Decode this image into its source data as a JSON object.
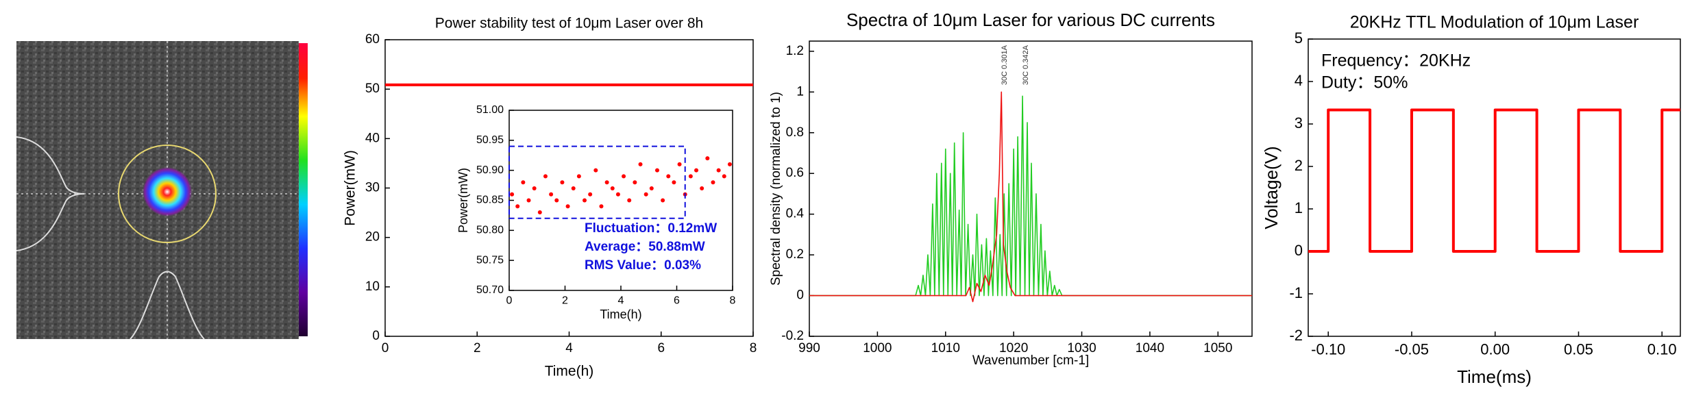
{
  "chart_data": [
    {
      "type": "line",
      "title": "Power stability test of 10μm Laser over 8h",
      "xlabel": "Time(h)",
      "ylabel": "Power(mW)",
      "xlim": [
        0,
        8
      ],
      "ylim": [
        0,
        60
      ],
      "xticks": [
        0,
        2,
        4,
        6,
        8
      ],
      "yticks": [
        0,
        10,
        20,
        30,
        40,
        50,
        60
      ],
      "series": [
        {
          "color": "#ff0000",
          "x": [
            0,
            8
          ],
          "values": [
            50.88,
            50.88
          ]
        }
      ],
      "inset": {
        "type": "scatter",
        "xlabel": "Time(h)",
        "ylabel": "Power(mW)",
        "color": "#ff0000",
        "xlim": [
          0,
          8
        ],
        "ylim": [
          50.7,
          51.0
        ],
        "xticks": [
          0,
          2,
          4,
          6,
          8
        ],
        "yticks": [
          {
            "value": 50.7,
            "label": "50.70"
          },
          {
            "value": 50.75,
            "label": "50.75"
          },
          {
            "value": 50.8,
            "label": "50.80"
          },
          {
            "value": 50.85,
            "label": "50.85"
          },
          {
            "value": 50.9,
            "label": "50.90"
          },
          {
            "value": 50.95,
            "label": "50.95"
          },
          {
            "value": 51.0,
            "label": "51.00"
          }
        ],
        "x": [
          0.1,
          0.3,
          0.5,
          0.7,
          0.9,
          1.1,
          1.3,
          1.5,
          1.7,
          1.9,
          2.1,
          2.3,
          2.5,
          2.7,
          2.9,
          3.1,
          3.3,
          3.5,
          3.7,
          3.9,
          4.1,
          4.3,
          4.5,
          4.7,
          4.9,
          5.1,
          5.3,
          5.5,
          5.7,
          5.9,
          6.1,
          6.3,
          6.5,
          6.7,
          6.9,
          7.1,
          7.3,
          7.5,
          7.7,
          7.9
        ],
        "values": [
          50.86,
          50.84,
          50.88,
          50.85,
          50.87,
          50.83,
          50.89,
          50.86,
          50.85,
          50.88,
          50.84,
          50.87,
          50.89,
          50.85,
          50.86,
          50.9,
          50.84,
          50.88,
          50.87,
          50.86,
          50.89,
          50.85,
          50.88,
          50.91,
          50.86,
          50.87,
          50.9,
          50.85,
          50.89,
          50.88,
          50.91,
          50.86,
          50.89,
          50.9,
          50.87,
          50.92,
          50.88,
          50.9,
          50.89,
          50.91
        ],
        "highlight": {
          "x": [
            0,
            6.3
          ],
          "y": [
            50.82,
            50.94
          ]
        },
        "annotations": [
          "Fluctuation：0.12mW",
          "Average：50.88mW",
          "RMS Value：0.03%"
        ]
      }
    },
    {
      "type": "line",
      "title": "Spectra of 10μm Laser for various DC currents",
      "xlabel": "Wavenumber [cm-1]",
      "ylabel": "Spectral density (normalized to 1)",
      "xlim": [
        990,
        1055
      ],
      "ylim": [
        -0.2,
        1.25
      ],
      "xticks": [
        990,
        1000,
        1010,
        1020,
        1030,
        1040,
        1050
      ],
      "yticks": [
        -0.2,
        0,
        0.2,
        0.4,
        0.6,
        0.8,
        1,
        1.2
      ],
      "series": [
        {
          "name": "30C 0.342A",
          "color": "#22cc22",
          "x": [
            990,
            1005.6,
            1006.0,
            1006.35,
            1006.7,
            1007.05,
            1007.4,
            1007.75,
            1008.1,
            1008.4,
            1008.7,
            1009.05,
            1009.4,
            1009.7,
            1010.0,
            1010.35,
            1010.7,
            1011.0,
            1011.3,
            1011.65,
            1012.0,
            1012.3,
            1012.6,
            1012.95,
            1013.3,
            1013.65,
            1014.0,
            1014.3,
            1014.6,
            1014.95,
            1015.3,
            1015.65,
            1016.0,
            1016.3,
            1016.6,
            1016.95,
            1017.3,
            1017.65,
            1018.0,
            1018.3,
            1018.6,
            1018.95,
            1019.3,
            1019.65,
            1020.0,
            1020.3,
            1020.6,
            1020.95,
            1021.3,
            1021.65,
            1022.0,
            1022.3,
            1022.6,
            1022.95,
            1023.3,
            1023.65,
            1024.0,
            1024.3,
            1024.6,
            1024.95,
            1025.3,
            1025.65,
            1026.0,
            1026.35,
            1026.7,
            1027.1,
            1055
          ],
          "values": [
            0,
            0,
            0.05,
            0,
            0.1,
            0,
            0.2,
            0,
            0.45,
            0,
            0.6,
            0,
            0.65,
            0,
            0.72,
            0,
            0.6,
            0,
            0.75,
            0,
            0.42,
            0,
            0.8,
            0,
            0.35,
            0,
            0.2,
            0,
            0.4,
            0,
            0.25,
            0,
            0.28,
            0,
            0.22,
            0,
            0.48,
            0,
            0.3,
            0,
            0.5,
            0,
            0.55,
            0,
            0.72,
            0,
            0.78,
            0,
            0.98,
            0,
            0.85,
            0,
            0.65,
            0,
            0.5,
            0,
            0.35,
            0,
            0.22,
            0,
            0.12,
            0,
            0.05,
            0,
            0.03,
            0,
            0
          ]
        },
        {
          "name": "30C 0.301A",
          "color": "#ee1111",
          "x": [
            990,
            1013,
            1013.5,
            1014,
            1014.6,
            1015.2,
            1015.8,
            1016.4,
            1016.9,
            1017.5,
            1017.9,
            1018.2,
            1018.5,
            1019,
            1019.5,
            1020.2,
            1055
          ],
          "values": [
            0,
            0,
            0.04,
            -0.03,
            0.06,
            0.02,
            0.1,
            0.05,
            0.15,
            0.3,
            0.6,
            1,
            0.25,
            0.12,
            0.04,
            0,
            0
          ]
        }
      ]
    },
    {
      "type": "line",
      "title": "20KHz TTL Modulation of 10μm Laser",
      "xlabel": "Time(ms)",
      "ylabel": "Voltage(V)",
      "xlim": [
        -0.112,
        0.111
      ],
      "ylim": [
        -2,
        5
      ],
      "xticks": [
        {
          "value": -0.1,
          "label": "-0.10"
        },
        {
          "value": -0.05,
          "label": "-0.05"
        },
        {
          "value": 0,
          "label": "0.00"
        },
        {
          "value": 0.05,
          "label": "0.05"
        },
        {
          "value": 0.1,
          "label": "0.10"
        }
      ],
      "yticks": [
        -2,
        -1,
        0,
        1,
        2,
        3,
        4,
        5
      ],
      "annotations": [
        "Frequency：20KHz",
        "Duty：50%"
      ],
      "series": [
        {
          "color": "#ff0000",
          "x": [
            -0.112,
            -0.1,
            -0.1,
            -0.075,
            -0.075,
            -0.05,
            -0.05,
            -0.025,
            -0.025,
            0,
            0,
            0.025,
            0.025,
            0.05,
            0.05,
            0.075,
            0.075,
            0.1,
            0.1,
            0.111
          ],
          "values": [
            0,
            0,
            3.33,
            3.33,
            0,
            0,
            3.33,
            3.33,
            0,
            0,
            3.33,
            3.33,
            0,
            0,
            3.33,
            3.33,
            0,
            0,
            3.33,
            3.33
          ]
        }
      ]
    }
  ]
}
